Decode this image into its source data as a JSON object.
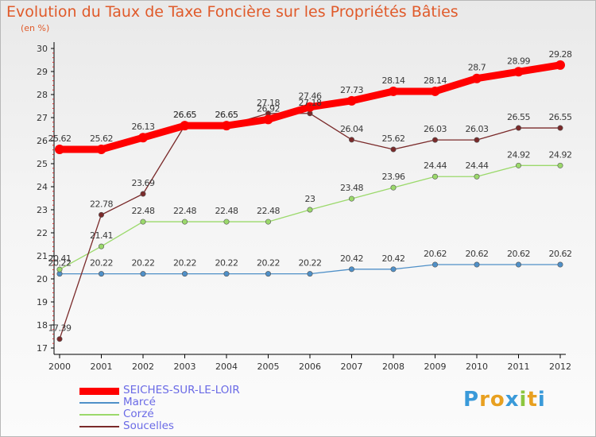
{
  "chart_data": {
    "type": "line",
    "title": "Evolution du Taux de Taxe Foncière sur les Propriétés Bâties",
    "ylabel": "(en %)",
    "xlabel": "",
    "ylim": [
      17,
      30
    ],
    "yticks": [
      "17",
      "18",
      "19",
      "20",
      "21",
      "22",
      "23",
      "24",
      "25",
      "26",
      "27",
      "28",
      "29",
      "30"
    ],
    "categories": [
      "2000",
      "2001",
      "2002",
      "2003",
      "2004",
      "2005",
      "2006",
      "2007",
      "2008",
      "2009",
      "2010",
      "2011",
      "2012"
    ],
    "series": [
      {
        "name": "SEICHES-SUR-LE-LOIR",
        "color": "#ff0000",
        "values": [
          25.62,
          25.62,
          26.13,
          26.65,
          26.65,
          26.92,
          27.46,
          27.73,
          28.14,
          28.14,
          28.7,
          28.99,
          29.28
        ],
        "labels": [
          "25.62",
          "25.62",
          "26.13",
          "26.65",
          "26.65",
          "26.92",
          "27.46",
          "27.73",
          "28.14",
          "28.14",
          "28.7",
          "28.99",
          "29.28"
        ]
      },
      {
        "name": "Marcé",
        "color": "#4f90c8",
        "values": [
          20.22,
          20.22,
          20.22,
          20.22,
          20.22,
          20.22,
          20.22,
          20.42,
          20.42,
          20.62,
          20.62,
          20.62,
          20.62
        ],
        "labels": [
          "20.22",
          "20.22",
          "20.22",
          "20.22",
          "20.22",
          "20.22",
          "20.22",
          "20.42",
          "20.42",
          "20.62",
          "20.62",
          "20.62",
          "20.62"
        ]
      },
      {
        "name": "Corzé",
        "color": "#9bd96b",
        "values": [
          20.41,
          21.41,
          22.48,
          22.48,
          22.48,
          22.48,
          23,
          23.48,
          23.96,
          24.44,
          24.44,
          24.92,
          24.92
        ],
        "labels": [
          "20.41",
          "21.41",
          "22.48",
          "22.48",
          "22.48",
          "22.48",
          "23",
          "23.48",
          "23.96",
          "24.44",
          "24.44",
          "24.92",
          "24.92"
        ]
      },
      {
        "name": "Soucelles",
        "color": "#7a2a2a",
        "values": [
          17.39,
          22.78,
          23.69,
          26.65,
          26.65,
          27.18,
          27.18,
          26.04,
          25.62,
          26.03,
          26.03,
          26.55,
          26.55
        ],
        "labels": [
          "17.39",
          "22.78",
          "23.69",
          "26.65",
          "26.65",
          "27.18",
          "27.18",
          "26.04",
          "25.62",
          "26.03",
          "26.03",
          "26.55",
          "26.55"
        ]
      }
    ],
    "legend": "bottom-left",
    "grid": false
  },
  "logo": {
    "text": "Proxiti",
    "letters": [
      "P",
      "r",
      "o",
      "x",
      "i",
      "t",
      "i"
    ],
    "colors": [
      "#3a9ad9",
      "#e8a020",
      "#e8a020",
      "#3a9ad9",
      "#8cc63f",
      "#e8a020",
      "#3a9ad9"
    ]
  }
}
